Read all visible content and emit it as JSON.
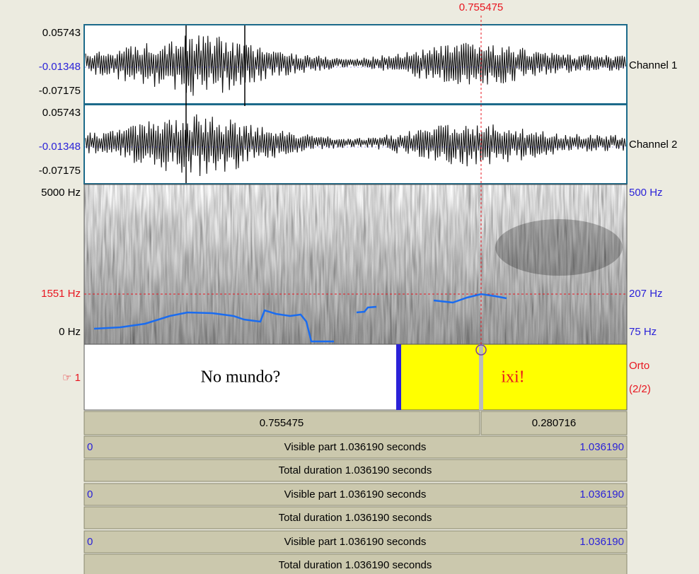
{
  "cursor_time": "0.755475",
  "channels": [
    {
      "max": "0.05743",
      "mid": "-0.01348",
      "min": "-0.07175",
      "name": "Channel 1"
    },
    {
      "max": "0.05743",
      "mid": "-0.01348",
      "min": "-0.07175",
      "name": "Channel 2"
    }
  ],
  "spectrogram": {
    "top": "5000 Hz",
    "cursor": "1551 Hz",
    "bottom": "0 Hz"
  },
  "pitch": {
    "top": "500 Hz",
    "cursor": "207 Hz",
    "bottom": "75 Hz"
  },
  "tier": {
    "label": "☞ 1",
    "intervals": [
      "No mundo?",
      "ixi!"
    ],
    "name": "Orto",
    "position": "(2/2)"
  },
  "selection": {
    "left": "0.755475",
    "right": "0.280716"
  },
  "rows": [
    {
      "start": "0",
      "visible": "Visible part 1.036190 seconds",
      "end": "1.036190",
      "total": "Total duration 1.036190 seconds"
    },
    {
      "start": "0",
      "visible": "Visible part 1.036190 seconds",
      "end": "1.036190",
      "total": "Total duration 1.036190 seconds"
    },
    {
      "start": "0",
      "visible": "Visible part 1.036190 seconds",
      "end": "1.036190",
      "total": "Total duration 1.036190 seconds"
    }
  ]
}
